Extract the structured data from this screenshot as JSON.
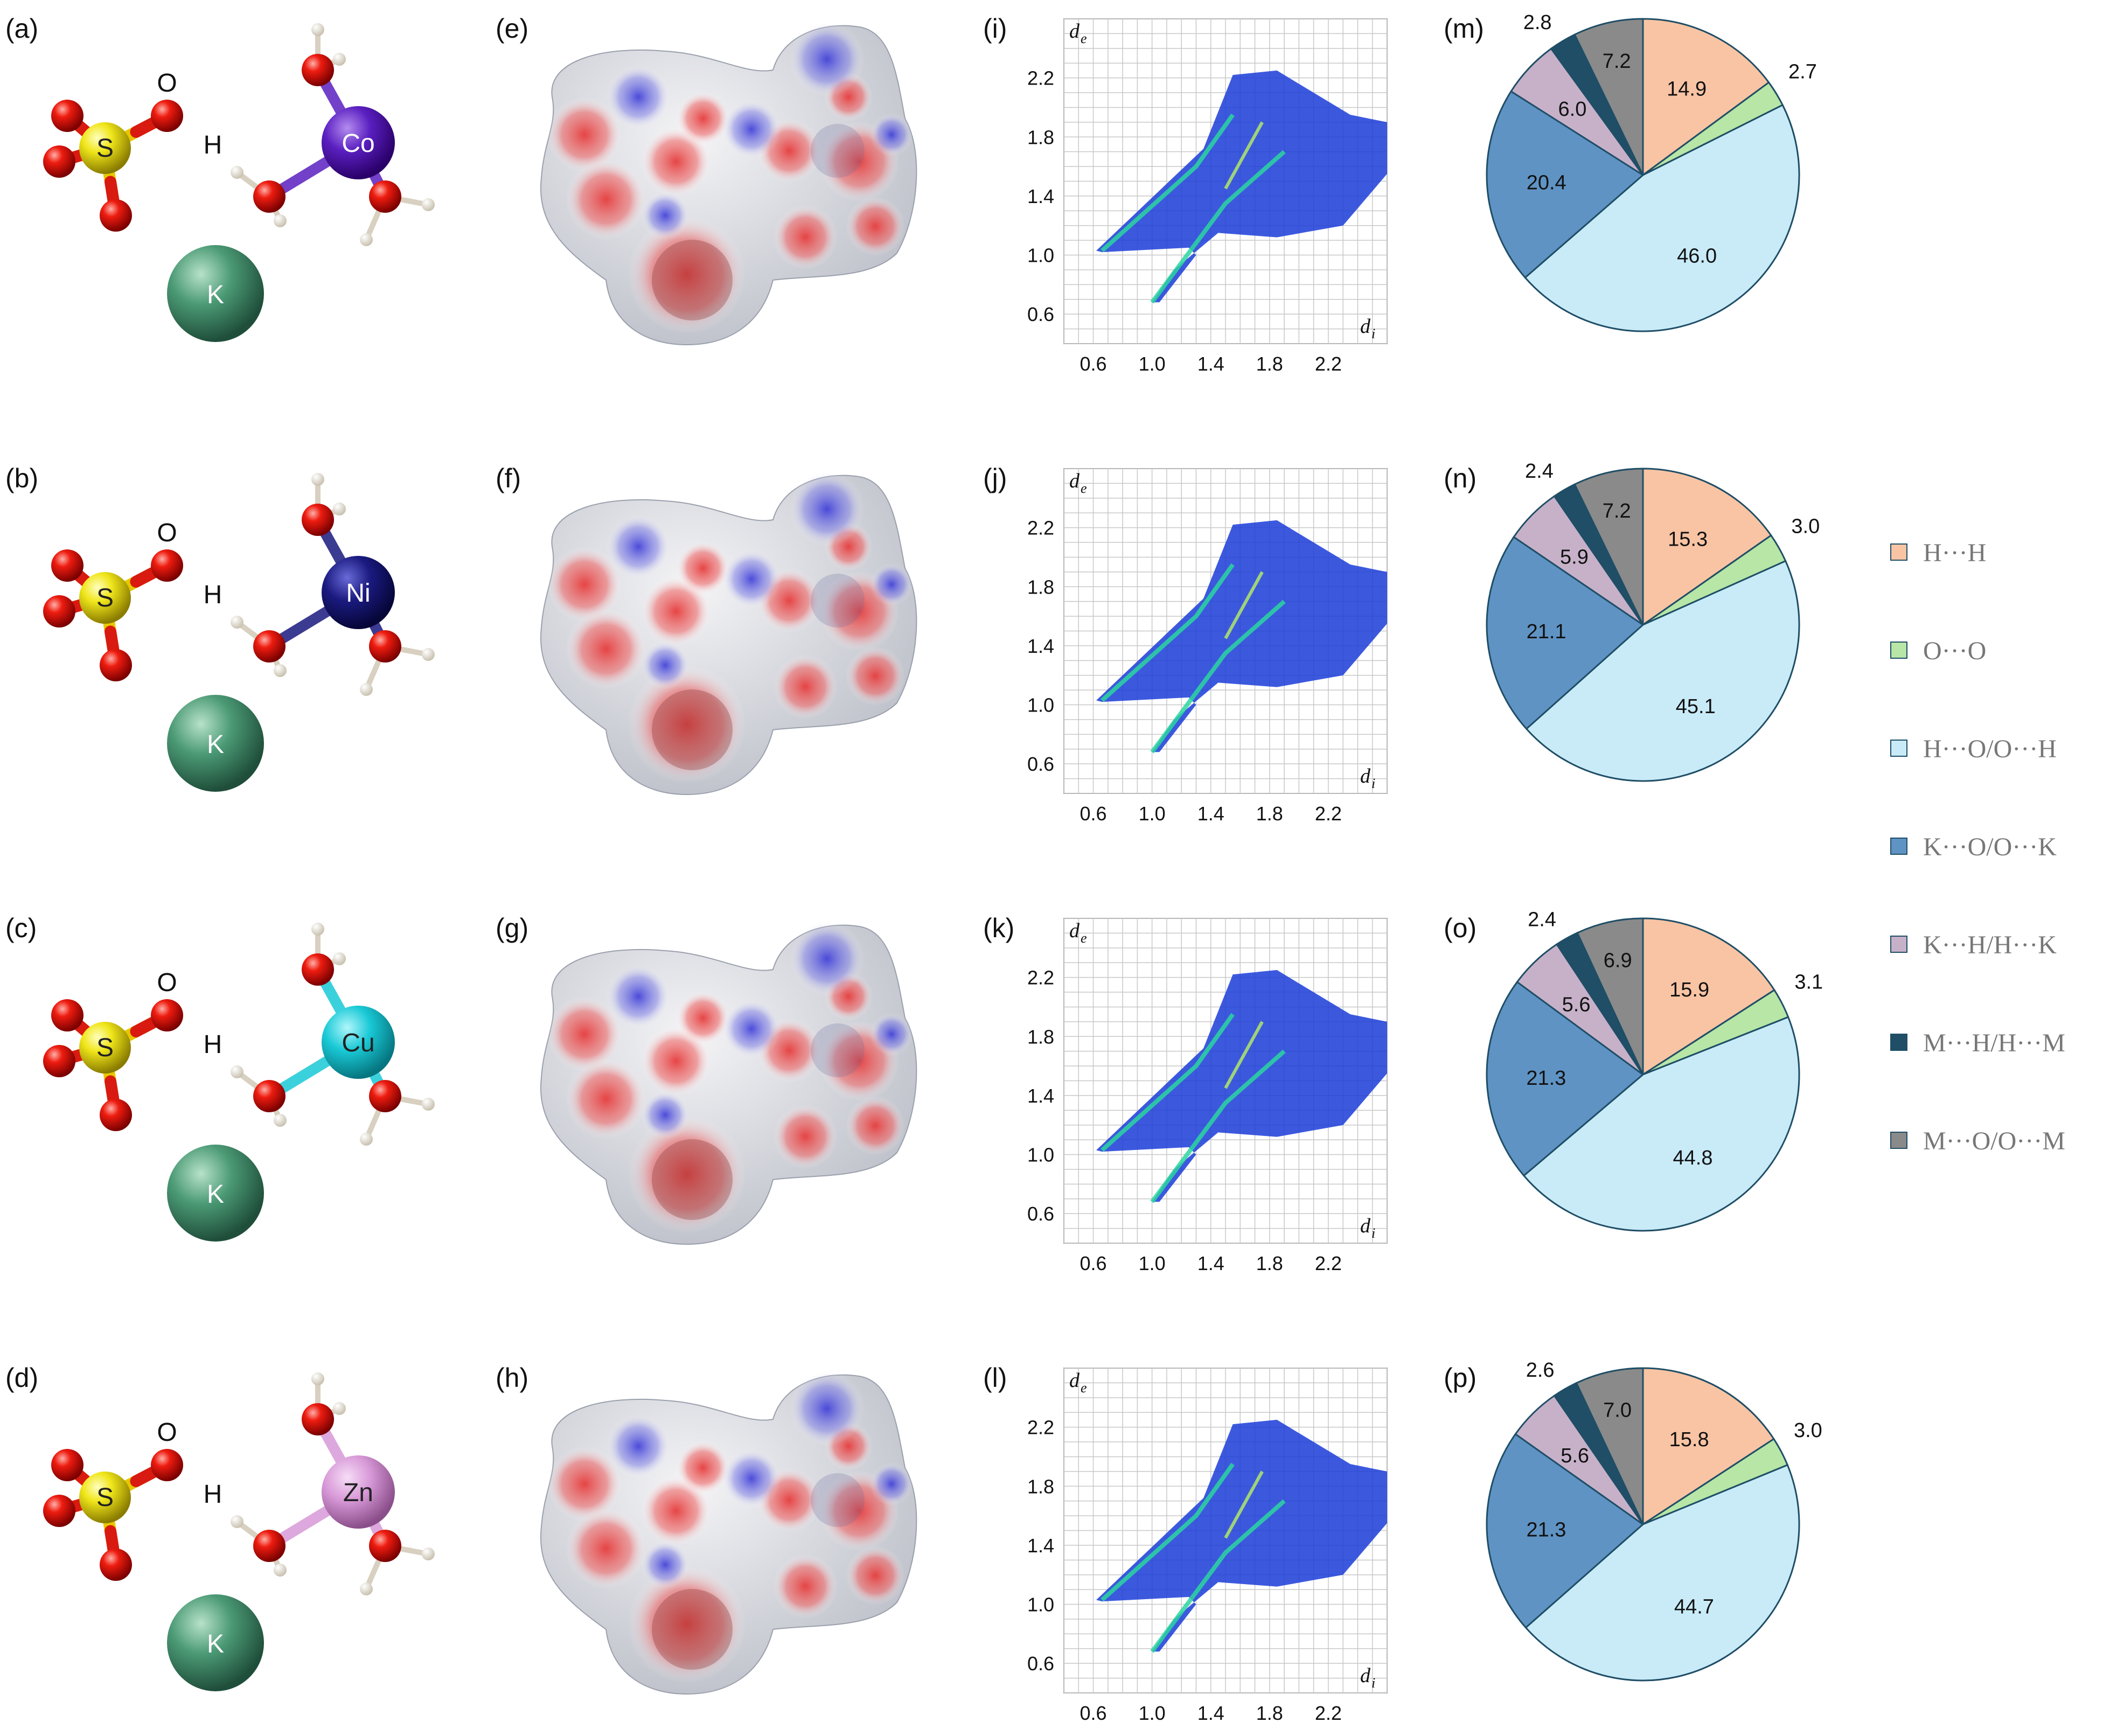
{
  "panels": [
    {
      "mol_label": "(a)",
      "hs_label": "(e)",
      "fp_label": "(i)",
      "pie_label": "(m)",
      "metal": "Co",
      "metal_color": "#5a1fc0"
    },
    {
      "mol_label": "(b)",
      "hs_label": "(f)",
      "fp_label": "(j)",
      "pie_label": "(n)",
      "metal": "Ni",
      "metal_color": "#1a1a80"
    },
    {
      "mol_label": "(c)",
      "hs_label": "(g)",
      "fp_label": "(k)",
      "pie_label": "(o)",
      "metal": "Cu",
      "metal_color": "#19c9d6"
    },
    {
      "mol_label": "(d)",
      "hs_label": "(h)",
      "fp_label": "(l)",
      "pie_label": "(p)",
      "metal": "Zn",
      "metal_color": "#d89ad8"
    }
  ],
  "atom_labels": {
    "sulfur": "S",
    "oxygen": "O",
    "hydrogen": "H",
    "potassium": "K"
  },
  "fingerprint_axes": {
    "ylabel": "d",
    "ylabel_sub": "e",
    "xlabel": "d",
    "xlabel_sub": "i",
    "xticks": [
      "0.6",
      "1.0",
      "1.4",
      "1.8",
      "2.2"
    ],
    "yticks": [
      "2.2",
      "1.8",
      "1.4",
      "1.0",
      "0.6"
    ],
    "range": [
      0.4,
      2.6
    ]
  },
  "legend": [
    {
      "label": "H···H",
      "color": "#f8c4a4"
    },
    {
      "label": "O···O",
      "color": "#b7e6a6"
    },
    {
      "label": "H···O/O···H",
      "color": "#c9ebf8"
    },
    {
      "label": "K···O/O···K",
      "color": "#5f93c4"
    },
    {
      "label": "K···H/H···K",
      "color": "#c7b1c9"
    },
    {
      "label": "M···H/H···M",
      "color": "#1f4e66"
    },
    {
      "label": "M···O/O···M",
      "color": "#8a8a8a"
    }
  ],
  "chart_data": [
    {
      "type": "pie",
      "label": "(m)",
      "categories": [
        "H···H",
        "O···O",
        "H···O/O···H",
        "K···O/O···K",
        "K···H/H···K",
        "M···H/H···M",
        "M···O/O···M"
      ],
      "values": [
        14.9,
        2.7,
        46.0,
        20.4,
        6.0,
        2.8,
        7.2
      ]
    },
    {
      "type": "pie",
      "label": "(n)",
      "categories": [
        "H···H",
        "O···O",
        "H···O/O···H",
        "K···O/O···K",
        "K···H/H···K",
        "M···H/H···M",
        "M···O/O···M"
      ],
      "values": [
        15.3,
        3.0,
        45.1,
        21.1,
        5.9,
        2.4,
        7.2
      ]
    },
    {
      "type": "pie",
      "label": "(o)",
      "categories": [
        "H···H",
        "O···O",
        "H···O/O···H",
        "K···O/O···K",
        "K···H/H···K",
        "M···H/H···M",
        "M···O/O···M"
      ],
      "values": [
        15.9,
        3.1,
        44.8,
        21.3,
        5.6,
        2.4,
        6.9
      ]
    },
    {
      "type": "pie",
      "label": "(p)",
      "categories": [
        "H···H",
        "O···O",
        "H···O/O···H",
        "K···O/O···K",
        "K···H/H···K",
        "M···H/H···M",
        "M···O/O···M"
      ],
      "values": [
        15.8,
        3.0,
        44.7,
        21.3,
        5.6,
        2.6,
        7.0
      ]
    }
  ]
}
